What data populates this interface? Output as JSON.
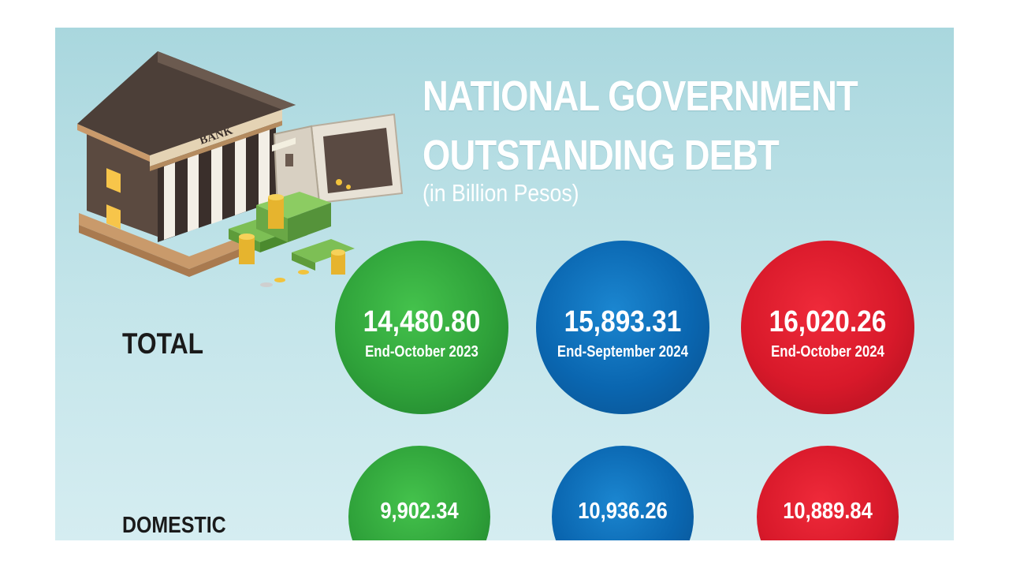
{
  "title_line1": "NATIONAL GOVERNMENT",
  "title_line2": "OUTSTANDING DEBT",
  "subtitle": "(in Billion Pesos)",
  "illustration": {
    "bank_sign": "BANK"
  },
  "colors": {
    "green": "#2fa23a",
    "blue": "#0a66b0",
    "red": "#d8192a",
    "background": "#b8dfe5"
  },
  "chart_data": {
    "type": "table",
    "title": "NATIONAL GOVERNMENT OUTSTANDING DEBT",
    "subtitle": "(in Billion Pesos)",
    "periods": [
      "End-October 2023",
      "End-September 2024",
      "End-October 2024"
    ],
    "rows": [
      {
        "label": "TOTAL",
        "display": [
          "14,480.80",
          "15,893.31",
          "16,020.26"
        ],
        "values": [
          14480.8,
          15893.31,
          16020.26
        ]
      },
      {
        "label": "DOMESTIC",
        "display": [
          "9,902.34",
          "10,936.26",
          "10,889.84"
        ],
        "values": [
          9902.34,
          10936.26,
          10889.84
        ]
      }
    ]
  }
}
